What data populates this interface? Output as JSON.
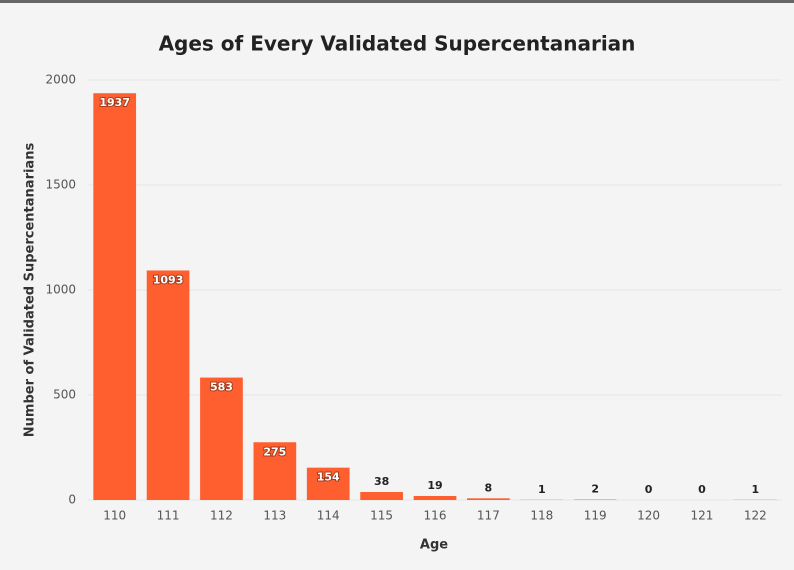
{
  "chart_data": {
    "type": "bar",
    "title": "Ages of Every Validated Supercentanarian",
    "x_label": "Age",
    "y_label": "Number of Validated Supercentanarians",
    "categories": [
      "110",
      "111",
      "112",
      "113",
      "114",
      "115",
      "116",
      "117",
      "118",
      "119",
      "120",
      "121",
      "122"
    ],
    "values": [
      1937,
      1093,
      583,
      275,
      154,
      38,
      19,
      8,
      1,
      2,
      0,
      0,
      1
    ],
    "color": "#ff5f2e",
    "ylim": [
      0,
      2000
    ],
    "yticks": [
      0,
      500,
      1000,
      1500,
      2000
    ],
    "grid": true
  }
}
